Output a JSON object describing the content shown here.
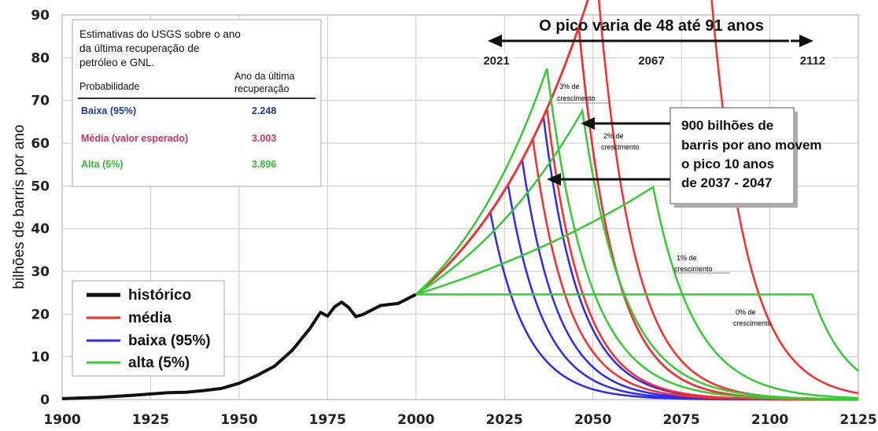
{
  "chart_data": {
    "type": "line",
    "ylabel": "bilhões de barris por ano",
    "xlim": [
      1900,
      2125
    ],
    "ylim": [
      0,
      90
    ],
    "x_ticks": [
      "1900",
      "1925",
      "1950",
      "1975",
      "2000",
      "2025",
      "2050",
      "2075",
      "2100",
      "2125"
    ],
    "y_ticks": [
      "0",
      "10",
      "20",
      "30",
      "40",
      "50",
      "60",
      "70",
      "80",
      "90"
    ],
    "grid": true,
    "legend_position": "bottom-left",
    "legend": [
      {
        "label": "histórico",
        "color": "#111111"
      },
      {
        "label": "média",
        "color": "#ff2a2a"
      },
      {
        "label": "baixa (95%)",
        "color": "#2a2aff"
      },
      {
        "label": "alta (5%)",
        "color": "#33cc33"
      }
    ],
    "historical": {
      "name": "histórico",
      "x": [
        1900,
        1910,
        1920,
        1925,
        1930,
        1935,
        1940,
        1945,
        1950,
        1955,
        1960,
        1965,
        1970,
        1973,
        1975,
        1977,
        1979,
        1981,
        1983,
        1985,
        1990,
        1995,
        2000
      ],
      "y": [
        0.2,
        0.5,
        1.0,
        1.3,
        1.6,
        1.7,
        2.1,
        2.6,
        3.8,
        5.6,
        7.8,
        11.5,
        16.6,
        20.4,
        19.5,
        21.7,
        22.8,
        21.5,
        19.4,
        19.9,
        22.0,
        22.5,
        24.6
      ]
    },
    "scenarios": [
      {
        "name": "baixa (95%)",
        "color": "#2a2aff",
        "peak_x": [
          2021,
          2026,
          2030,
          2036,
          2046
        ]
      },
      {
        "name": "média",
        "color": "#ff2a2a",
        "peak_x": [
          2033,
          2037,
          2046,
          2051,
          2076
        ]
      },
      {
        "name": "alta (5%)",
        "color": "#33cc33",
        "peak_x": [
          2037,
          2047,
          2067,
          2112
        ]
      }
    ],
    "growth_labels": [
      {
        "text": "3% de",
        "text2": "crescimento"
      },
      {
        "text": "2% de",
        "text2": "crescimento"
      },
      {
        "text": "1% de",
        "text2": "crescimento"
      },
      {
        "text": "0% de",
        "text2": "crescimento"
      }
    ],
    "top_annotation": {
      "title": "O pico varia de 48 até 91 anos",
      "years": [
        "2021",
        "2067",
        "2112"
      ]
    },
    "callout": {
      "lines": [
        "900 bilhões de",
        "barris por ano movem",
        "o pico 10 anos",
        "de 2037 - 2047"
      ]
    },
    "table": {
      "title_lines": [
        "Estimativas do USGS sobre o ano",
        "da última recuperação de",
        "petróleo e GNL."
      ],
      "header_left": "Probabilidade",
      "header_right": [
        "Ano da última",
        "recuperação"
      ],
      "rows": [
        {
          "label": "Baixa (95%)",
          "value": "2.248",
          "color": "#1a3a9a"
        },
        {
          "label": "Média (valor esperado)",
          "value": "3.003",
          "color": "#cc3366"
        },
        {
          "label": "Alta (5%)",
          "value": "3.896",
          "color": "#33bb33"
        }
      ]
    }
  }
}
